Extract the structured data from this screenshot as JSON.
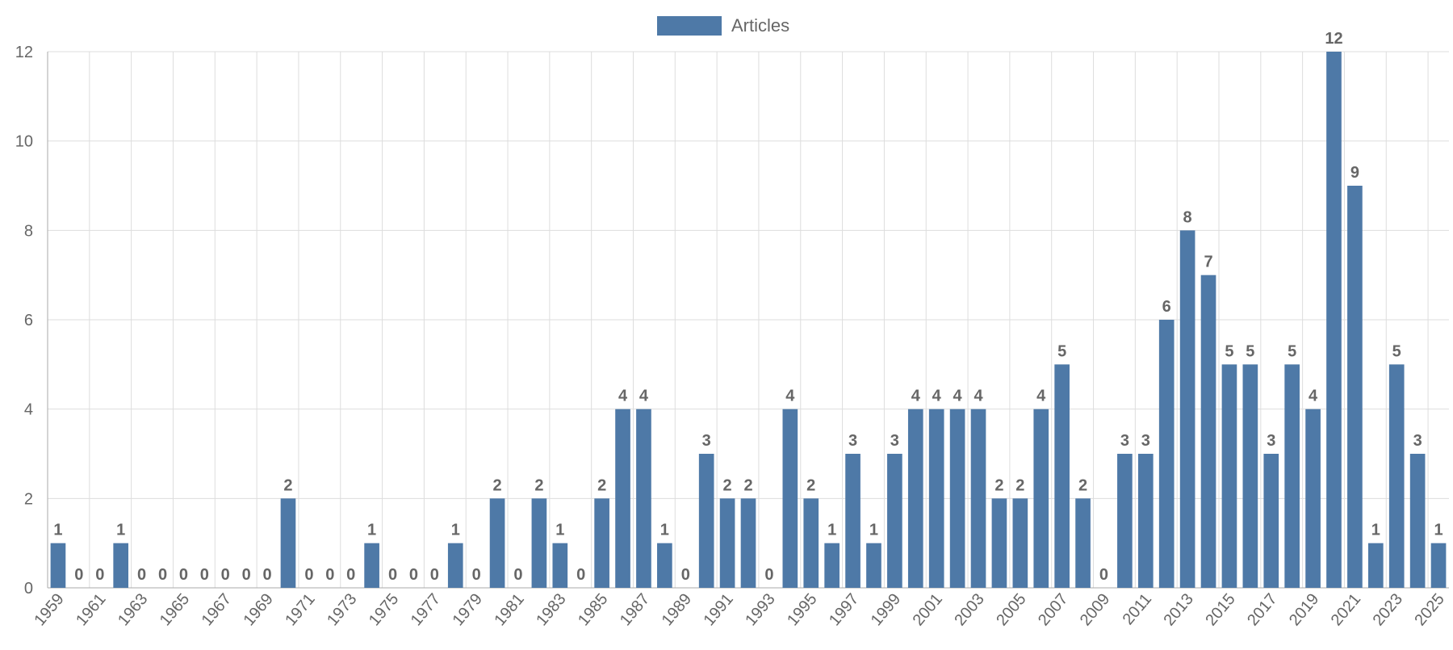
{
  "chart_data": {
    "type": "bar",
    "categories": [
      "1959",
      "1960",
      "1961",
      "1962",
      "1963",
      "1964",
      "1965",
      "1966",
      "1967",
      "1968",
      "1969",
      "1970",
      "1971",
      "1972",
      "1973",
      "1974",
      "1975",
      "1976",
      "1977",
      "1978",
      "1979",
      "1980",
      "1981",
      "1982",
      "1983",
      "1984",
      "1985",
      "1986",
      "1987",
      "1988",
      "1989",
      "1990",
      "1991",
      "1992",
      "1993",
      "1994",
      "1995",
      "1996",
      "1997",
      "1998",
      "1999",
      "2000",
      "2001",
      "2002",
      "2003",
      "2004",
      "2005",
      "2006",
      "2007",
      "2008",
      "2009",
      "2010",
      "2011",
      "2012",
      "2013",
      "2014",
      "2015",
      "2016",
      "2017",
      "2018",
      "2019",
      "2020",
      "2021",
      "2022",
      "2023",
      "2024",
      "2025"
    ],
    "x_tick_labels": [
      "1959",
      "1961",
      "1963",
      "1965",
      "1967",
      "1969",
      "1971",
      "1973",
      "1975",
      "1977",
      "1979",
      "1981",
      "1983",
      "1985",
      "1987",
      "1989",
      "1991",
      "1993",
      "1995",
      "1997",
      "1999",
      "2001",
      "2003",
      "2005",
      "2007",
      "2009",
      "2011",
      "2013",
      "2015",
      "2017",
      "2019",
      "2021",
      "2023",
      "2025"
    ],
    "series": [
      {
        "name": "Articles",
        "color": "#4e79a7",
        "values": [
          1,
          0,
          0,
          1,
          0,
          0,
          0,
          0,
          0,
          0,
          0,
          2,
          0,
          0,
          0,
          1,
          0,
          0,
          0,
          1,
          0,
          2,
          0,
          2,
          1,
          0,
          2,
          4,
          4,
          1,
          0,
          3,
          2,
          2,
          0,
          4,
          2,
          1,
          3,
          1,
          3,
          4,
          4,
          4,
          4,
          2,
          2,
          4,
          5,
          2,
          0,
          3,
          3,
          6,
          8,
          7,
          5,
          5,
          3,
          5,
          4,
          12,
          9,
          1,
          5,
          3,
          1
        ]
      }
    ],
    "ylim": [
      0,
      12
    ],
    "y_ticks": [
      0,
      2,
      4,
      6,
      8,
      10,
      12
    ],
    "grid": true,
    "legend_position": "top-center",
    "data_labels": true,
    "title": "",
    "xlabel": "",
    "ylabel": ""
  }
}
